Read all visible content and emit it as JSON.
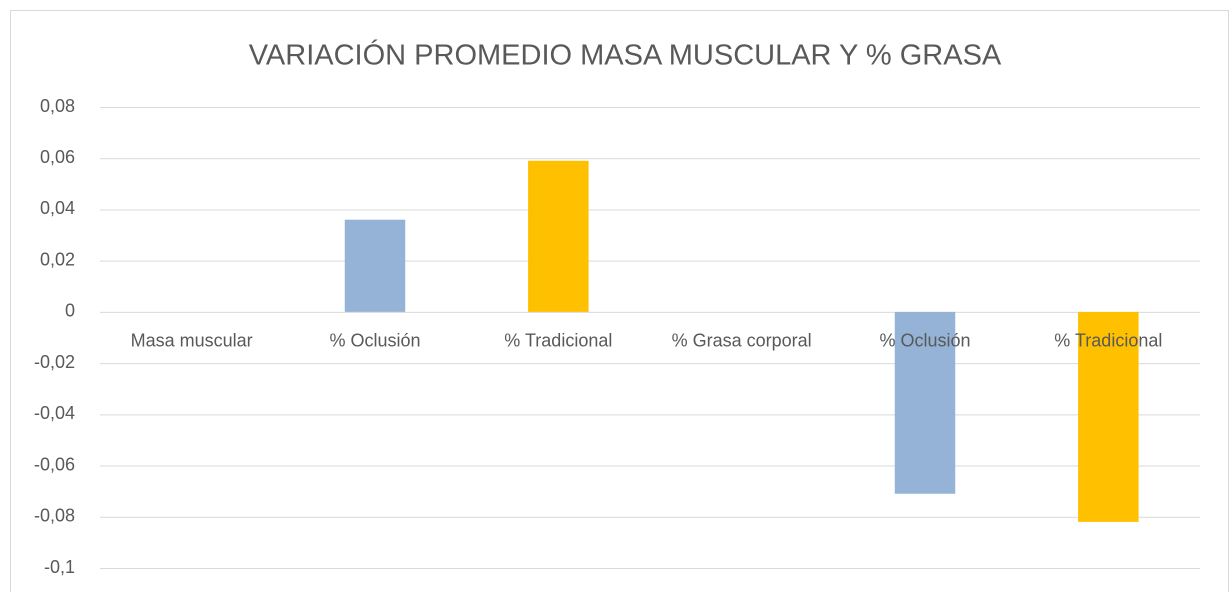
{
  "chart_data": {
    "type": "bar",
    "title": "VARIACIÓN PROMEDIO MASA MUSCULAR Y % GRASA",
    "categories": [
      "Masa muscular",
      "%  Oclusión",
      "%  Tradicional",
      "% Grasa corporal",
      "% Oclusión",
      "% Tradicional"
    ],
    "values": [
      null,
      0.036,
      0.059,
      null,
      -0.071,
      -0.082
    ],
    "colors": [
      null,
      "#95b3d7",
      "#ffc000",
      null,
      "#95b3d7",
      "#ffc000"
    ],
    "ylim": [
      -0.1,
      0.08
    ],
    "yticks": [
      {
        "value": 0.08,
        "label": "0,08"
      },
      {
        "value": 0.06,
        "label": "0,06"
      },
      {
        "value": 0.04,
        "label": "0,04"
      },
      {
        "value": 0.02,
        "label": "0,02"
      },
      0,
      {
        "value": -0.02,
        "label": "-0,02"
      },
      {
        "value": -0.04,
        "label": "-0,04"
      },
      {
        "value": -0.06,
        "label": "-0,06"
      },
      {
        "value": -0.08,
        "label": "-0,08"
      },
      {
        "value": -0.1,
        "label": "-0,1"
      }
    ],
    "grid": true
  }
}
